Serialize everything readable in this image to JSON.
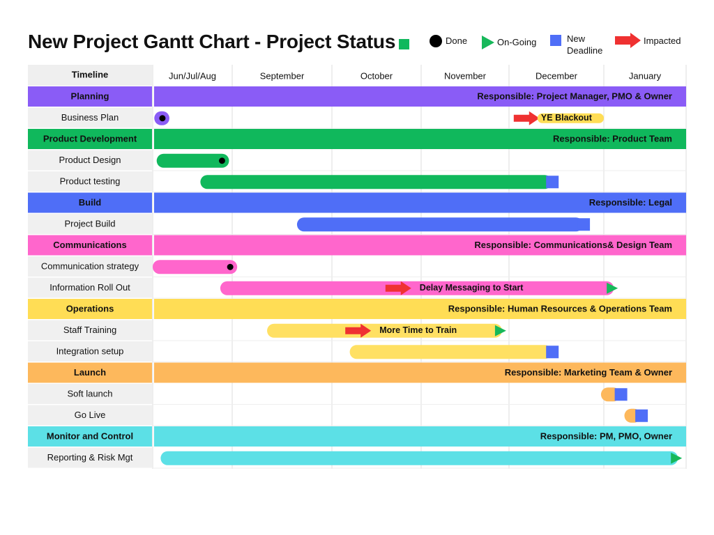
{
  "title": "New Project Gantt Chart - Project Status",
  "legend": [
    {
      "label": "Done",
      "marker": "circle",
      "color": "#000000"
    },
    {
      "label": "On-Going",
      "marker": "triangle",
      "color": "#17b85a"
    },
    {
      "label": "New Deadline",
      "marker": "square",
      "color": "#4f6ef7"
    },
    {
      "label": "Impacted",
      "marker": "arrow",
      "color": "#ef3131"
    }
  ],
  "colors": {
    "title_square": "#10b85c"
  },
  "chart_data": {
    "type": "gantt",
    "title": "New Project Gantt Chart - Project Status",
    "timeline_header": "Timeline",
    "columns": [
      "Jun/Jul/Aug",
      "September",
      "October",
      "November",
      "December",
      "January"
    ],
    "groups": [
      {
        "name": "Planning",
        "color": "#8a5cf6",
        "light": "#8a5cf6",
        "responsible": "Responsible: Project Manager, PMO & Owner",
        "tasks": [
          {
            "name": "Business Plan",
            "start": 0.02,
            "end": 0.21,
            "status": "done",
            "annotation": {
              "arrow_at": 4.05,
              "label": "YE Blackout",
              "label_start": 4.3,
              "label_end": 5.0
            }
          }
        ]
      },
      {
        "name": "Product Development",
        "color": "#10b85c",
        "light": "#10b85c",
        "responsible": "Responsible: Product Team",
        "tasks": [
          {
            "name": "Product Design",
            "start": 0.05,
            "end": 0.96,
            "status": "done"
          },
          {
            "name": "Product testing",
            "start": 0.6,
            "end": 4.45,
            "status": "new-deadline"
          }
        ]
      },
      {
        "name": "Build",
        "color": "#4f6ef7",
        "light": "#4f6ef7",
        "responsible": "Responsible: Legal",
        "tasks": [
          {
            "name": "Project Build",
            "start": 1.65,
            "end": 4.78,
            "status": "new-deadline"
          }
        ]
      },
      {
        "name": "Communications",
        "color": "#ff66cc",
        "light": "#ff66cc",
        "responsible": "Responsible: Communications& Design Team",
        "tasks": [
          {
            "name": "Communication strategy",
            "start": 0.0,
            "end": 1.05,
            "status": "done"
          },
          {
            "name": "Information Roll Out",
            "start": 0.85,
            "end": 5.12,
            "status": "on-going",
            "annotation": {
              "arrow_at": 2.6,
              "label": "Delay Messaging to Start"
            }
          }
        ]
      },
      {
        "name": "Operations",
        "color": "#ffdd55",
        "light": "#ffe063",
        "responsible": "Responsible: Human Resources & Operations Team",
        "tasks": [
          {
            "name": "Staff Training",
            "start": 1.35,
            "end": 3.92,
            "status": "on-going",
            "annotation": {
              "arrow_at": 2.15,
              "label": "More Time to Train"
            }
          },
          {
            "name": "Integration setup",
            "start": 2.2,
            "end": 4.45,
            "status": "new-deadline"
          }
        ]
      },
      {
        "name": "Launch",
        "color": "#fdb85c",
        "light": "#fdb85c",
        "responsible": "Responsible: Marketing Team & Owner",
        "tasks": [
          {
            "name": "Soft launch",
            "start": 4.97,
            "end": 5.2,
            "status": "new-deadline"
          },
          {
            "name": "Go Live",
            "start": 5.25,
            "end": 5.45,
            "status": "new-deadline"
          }
        ]
      },
      {
        "name": "Monitor and Control",
        "color": "#5ce0e6",
        "light": "#5ce0e6",
        "responsible": "Responsible: PM, PMO, Owner",
        "tasks": [
          {
            "name": "Reporting & Risk Mgt",
            "start": 0.1,
            "end": 5.9,
            "status": "on-going"
          }
        ]
      }
    ]
  }
}
